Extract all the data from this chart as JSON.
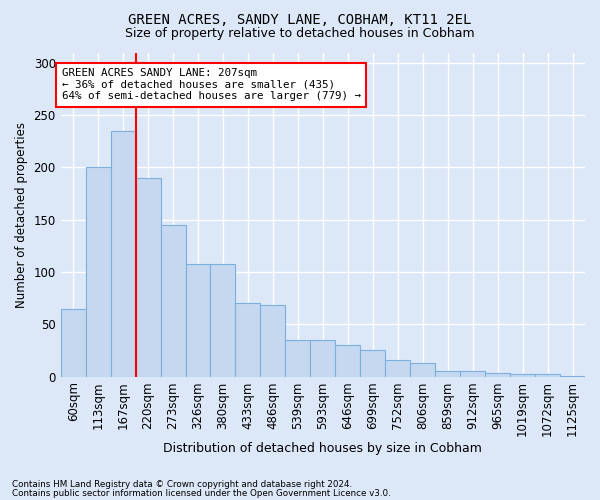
{
  "title1": "GREEN ACRES, SANDY LANE, COBHAM, KT11 2EL",
  "title2": "Size of property relative to detached houses in Cobham",
  "xlabel": "Distribution of detached houses by size in Cobham",
  "ylabel": "Number of detached properties",
  "categories": [
    "60sqm",
    "113sqm",
    "167sqm",
    "220sqm",
    "273sqm",
    "326sqm",
    "380sqm",
    "433sqm",
    "486sqm",
    "539sqm",
    "593sqm",
    "646sqm",
    "699sqm",
    "752sqm",
    "806sqm",
    "859sqm",
    "912sqm",
    "965sqm",
    "1019sqm",
    "1072sqm",
    "1125sqm"
  ],
  "values": [
    65,
    200,
    235,
    190,
    145,
    108,
    108,
    70,
    68,
    35,
    35,
    30,
    25,
    16,
    13,
    5,
    5,
    3,
    2,
    2,
    1
  ],
  "bar_color": "#c5d8f0",
  "bar_edge_color": "#7aafde",
  "red_line_x": 2.5,
  "annotation_text": "GREEN ACRES SANDY LANE: 207sqm\n← 36% of detached houses are smaller (435)\n64% of semi-detached houses are larger (779) →",
  "annotation_box_color": "white",
  "annotation_box_edge_color": "red",
  "footer1": "Contains HM Land Registry data © Crown copyright and database right 2024.",
  "footer2": "Contains public sector information licensed under the Open Government Licence v3.0.",
  "ylim": [
    0,
    310
  ],
  "yticks": [
    0,
    50,
    100,
    150,
    200,
    250,
    300
  ],
  "background_color": "#dce8f8",
  "grid_color": "white"
}
